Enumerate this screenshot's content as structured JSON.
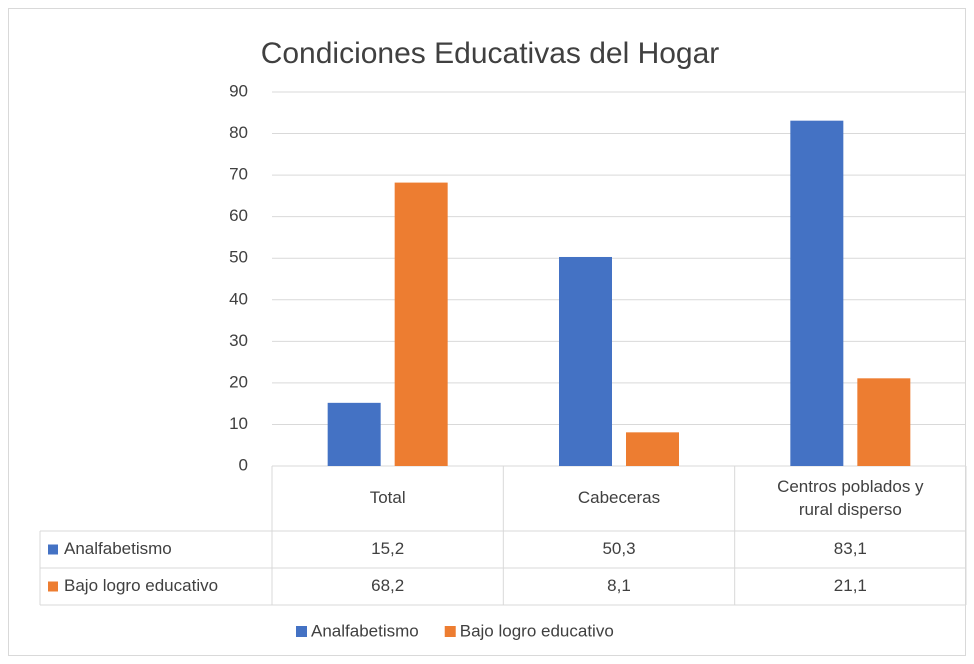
{
  "chart_data": {
    "type": "bar",
    "title": "Condiciones Educativas del Hogar",
    "categories": [
      "Total",
      "Cabeceras",
      "Centros poblados y rural disperso"
    ],
    "series": [
      {
        "name": "Analfabetismo",
        "color": "#4472c4",
        "values": [
          15.2,
          50.3,
          83.1
        ],
        "value_labels": [
          "15,2",
          "50,3",
          "83,1"
        ]
      },
      {
        "name": "Bajo logro educativo",
        "color": "#ed7d31",
        "values": [
          68.2,
          8.1,
          21.1
        ],
        "value_labels": [
          "68,2",
          "8,1",
          "21,1"
        ]
      }
    ],
    "ylim": [
      0,
      90
    ],
    "yticks": [
      0,
      10,
      20,
      30,
      40,
      50,
      60,
      70,
      80,
      90
    ],
    "grid": true,
    "legend": "bottom"
  }
}
